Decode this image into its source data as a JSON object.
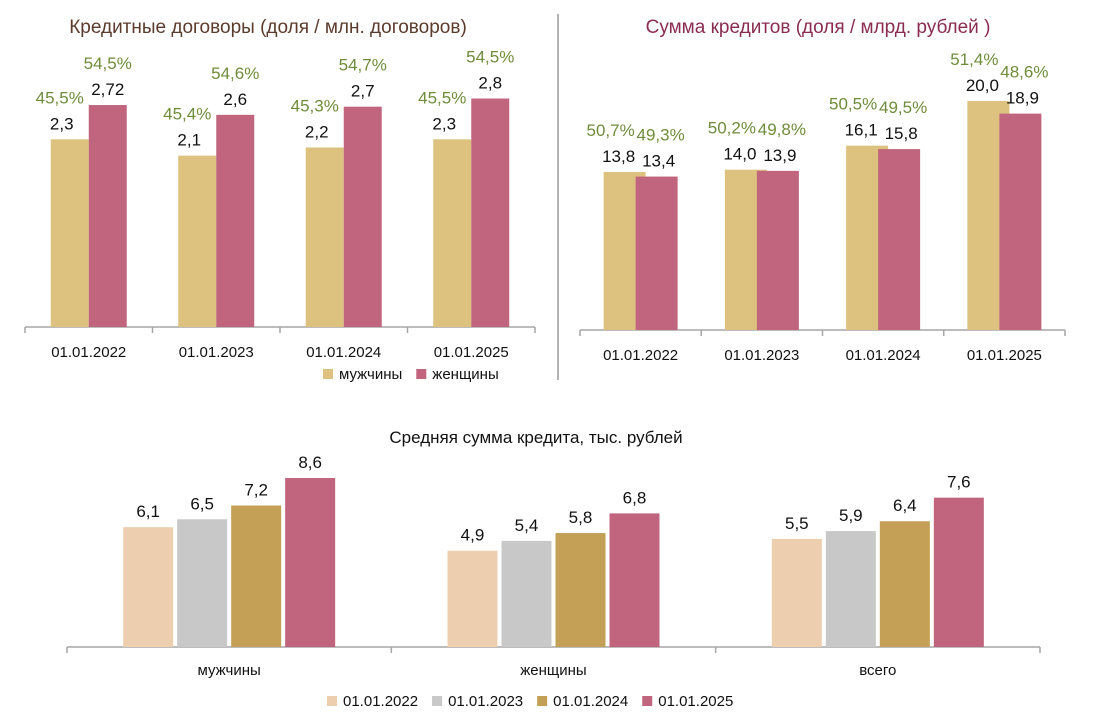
{
  "chart_data": [
    {
      "type": "bar",
      "title": "Кредитные договоры (доля / млн. договоров)",
      "categories": [
        "01.01.2022",
        "01.01.2023",
        "01.01.2024",
        "01.01.2025"
      ],
      "series": [
        {
          "name": "мужчины",
          "color": "#dcc17f",
          "values": [
            2.3,
            2.1,
            2.2,
            2.3
          ],
          "labels": [
            "2,3",
            "2,1",
            "2,2",
            "2,3"
          ],
          "shares": [
            "45,5%",
            "45,4%",
            "45,3%",
            "45,5%"
          ]
        },
        {
          "name": "женщины",
          "color": "#c0657d",
          "values": [
            2.72,
            2.6,
            2.7,
            2.8
          ],
          "labels": [
            "2,72",
            "2,6",
            "2,7",
            "2,8"
          ],
          "shares": [
            "54,5%",
            "54,6%",
            "54,7%",
            "54,5%"
          ]
        }
      ],
      "ylim": [
        0,
        2.8
      ],
      "legend": "bottom-right",
      "grid": false
    },
    {
      "type": "bar",
      "title": "Сумма кредитов (доля / млрд. рублей )",
      "categories": [
        "01.01.2022",
        "01.01.2023",
        "01.01.2024",
        "01.01.2025"
      ],
      "series": [
        {
          "name": "мужчины",
          "color": "#dcc17f",
          "values": [
            13.8,
            14.0,
            16.1,
            20.0
          ],
          "labels": [
            "13,8",
            "14,0",
            "16,1",
            "20,0"
          ],
          "shares": [
            "50,7%",
            "50,2%",
            "50,5%",
            "51,4%"
          ]
        },
        {
          "name": "женщины",
          "color": "#c0657d",
          "values": [
            13.4,
            13.9,
            15.8,
            18.9
          ],
          "labels": [
            "13,4",
            "13,9",
            "15,8",
            "18,9"
          ],
          "shares": [
            "49,3%",
            "49,8%",
            "49,5%",
            "48,6%"
          ]
        }
      ],
      "ylim": [
        0,
        20
      ],
      "grid": false
    },
    {
      "type": "bar",
      "title": "Средняя сумма кредита, тыс. рублей",
      "categories": [
        "мужчины",
        "женщины",
        "всего"
      ],
      "series": [
        {
          "name": "01.01.2022",
          "color": "#edcfb0",
          "values": [
            6.1,
            4.9,
            5.5
          ],
          "labels": [
            "6,1",
            "4,9",
            "5,5"
          ]
        },
        {
          "name": "01.01.2023",
          "color": "#c8c8c8",
          "values": [
            6.5,
            5.4,
            5.9
          ],
          "labels": [
            "6,5",
            "5,4",
            "5,9"
          ]
        },
        {
          "name": "01.01.2024",
          "color": "#c3a055",
          "values": [
            7.2,
            5.8,
            6.4
          ],
          "labels": [
            "7,2",
            "5,8",
            "6,4"
          ]
        },
        {
          "name": "01.01.2025",
          "color": "#c0657d",
          "values": [
            8.6,
            6.8,
            7.6
          ],
          "labels": [
            "8,6",
            "6,8",
            "7,6"
          ]
        }
      ],
      "ylim": [
        0,
        8.6
      ],
      "legend": "bottom",
      "grid": false
    }
  ]
}
